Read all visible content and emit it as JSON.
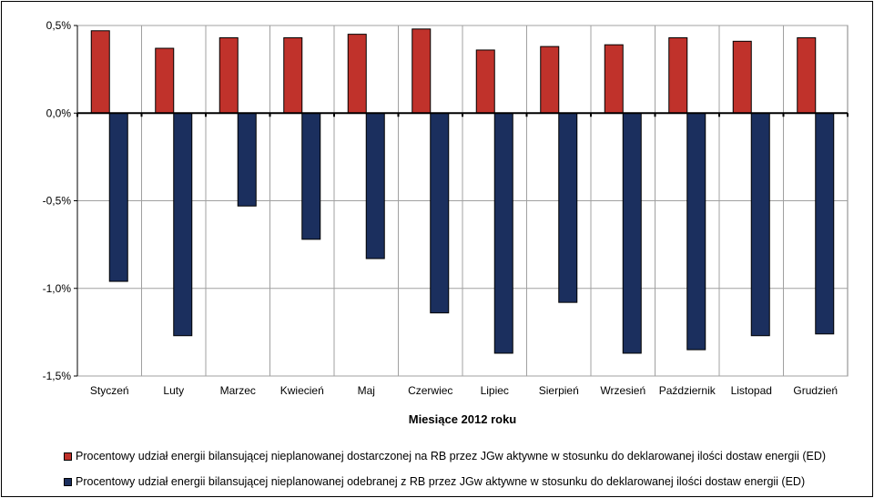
{
  "chart_data": {
    "type": "bar",
    "xlabel": "Miesiące 2012 roku",
    "ylabel": "",
    "ylim": [
      -1.5,
      0.5
    ],
    "yticks": [
      0.5,
      0.0,
      -0.5,
      -1.0,
      -1.5
    ],
    "ytick_labels": [
      "0,5%",
      "0,0%",
      "-0,5%",
      "-1,0%",
      "-1,5%"
    ],
    "grid": true,
    "legend_position": "bottom",
    "categories": [
      "Styczeń",
      "Luty",
      "Marzec",
      "Kwiecień",
      "Maj",
      "Czerwiec",
      "Lipiec",
      "Sierpień",
      "Wrzesień",
      "Październik",
      "Listopad",
      "Grudzień"
    ],
    "series": [
      {
        "name": "Procentowy udział energii bilansującej nieplanowanej dostarczonej na RB przez JGw aktywne w stosunku do deklarowanej ilości dostaw energii (ED)",
        "color": "#c0322b",
        "values": [
          0.47,
          0.37,
          0.43,
          0.43,
          0.45,
          0.48,
          0.36,
          0.38,
          0.39,
          0.43,
          0.41,
          0.43
        ]
      },
      {
        "name": "Procentowy udział energii bilansującej nieplanowanej odebranej z RB przez JGw aktywne w stosunku do deklarowanej ilości dostaw energii (ED)",
        "color": "#1b2f5e",
        "values": [
          -0.96,
          -1.27,
          -0.53,
          -0.72,
          -0.83,
          -1.14,
          -1.37,
          -1.08,
          -1.37,
          -1.35,
          -1.27,
          -1.26
        ]
      }
    ]
  }
}
